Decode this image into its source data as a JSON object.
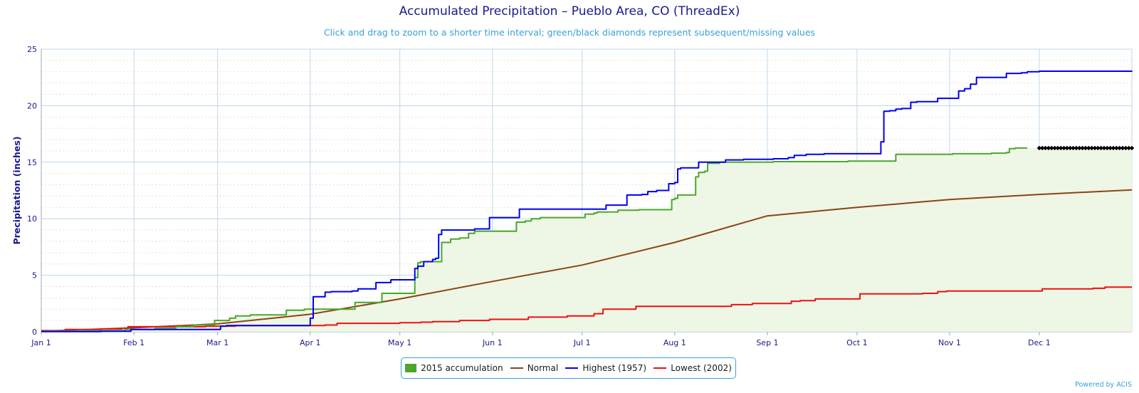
{
  "chart_data": {
    "type": "line",
    "title": "Accumulated Precipitation – Pueblo Area, CO (ThreadEx)",
    "subtitle": "Click and drag to zoom to a shorter time interval; green/black diamonds represent subsequent/missing values",
    "ylabel": "Precipitation (inches)",
    "xlabel": "",
    "ylim": [
      0,
      25
    ],
    "xlim": [
      0,
      365
    ],
    "yticks": [
      0,
      5,
      10,
      15,
      20,
      25
    ],
    "xticks": [
      {
        "day": 0,
        "label": "Jan 1"
      },
      {
        "day": 31,
        "label": "Feb 1"
      },
      {
        "day": 59,
        "label": "Mar 1"
      },
      {
        "day": 90,
        "label": "Apr 1"
      },
      {
        "day": 120,
        "label": "May 1"
      },
      {
        "day": 151,
        "label": "Jun 1"
      },
      {
        "day": 181,
        "label": "Jul 1"
      },
      {
        "day": 212,
        "label": "Aug 1"
      },
      {
        "day": 243,
        "label": "Sep 1"
      },
      {
        "day": 273,
        "label": "Oct 1"
      },
      {
        "day": 304,
        "label": "Nov 1"
      },
      {
        "day": 334,
        "label": "Dec 1"
      }
    ],
    "grid": true,
    "legend_position": "bottom-center",
    "series": [
      {
        "name": "2015 accumulation",
        "kind": "area",
        "color": "#4aa82a",
        "fill": "#eef6e6",
        "step": true,
        "points": [
          [
            0,
            0.05
          ],
          [
            12,
            0.1
          ],
          [
            28,
            0.2
          ],
          [
            38,
            0.3
          ],
          [
            45,
            0.45
          ],
          [
            51,
            0.6
          ],
          [
            57,
            0.6
          ],
          [
            58,
            1.0
          ],
          [
            61,
            1.0
          ],
          [
            63,
            1.2
          ],
          [
            65,
            1.4
          ],
          [
            70,
            1.5
          ],
          [
            76,
            1.5
          ],
          [
            81,
            1.5
          ],
          [
            82,
            1.9
          ],
          [
            87,
            1.9
          ],
          [
            88,
            2.0
          ],
          [
            98,
            2.0
          ],
          [
            104,
            2.0
          ],
          [
            105,
            2.6
          ],
          [
            110,
            2.6
          ],
          [
            113,
            2.6
          ],
          [
            114,
            3.4
          ],
          [
            120,
            3.4
          ],
          [
            122,
            3.4
          ],
          [
            125,
            4.8
          ],
          [
            126,
            6.1
          ],
          [
            127,
            6.2
          ],
          [
            133,
            6.2
          ],
          [
            134,
            7.9
          ],
          [
            137,
            8.2
          ],
          [
            140,
            8.3
          ],
          [
            143,
            8.7
          ],
          [
            145,
            8.9
          ],
          [
            155,
            8.9
          ],
          [
            158,
            8.9
          ],
          [
            159,
            9.7
          ],
          [
            162,
            9.8
          ],
          [
            164,
            10.0
          ],
          [
            167,
            10.1
          ],
          [
            180,
            10.1
          ],
          [
            182,
            10.4
          ],
          [
            185,
            10.5
          ],
          [
            186,
            10.6
          ],
          [
            192,
            10.6
          ],
          [
            193,
            10.75
          ],
          [
            199,
            10.75
          ],
          [
            200,
            10.8
          ],
          [
            210,
            10.8
          ],
          [
            211,
            11.7
          ],
          [
            212,
            11.8
          ],
          [
            213,
            12.1
          ],
          [
            218,
            12.1
          ],
          [
            219,
            13.7
          ],
          [
            220,
            14.1
          ],
          [
            222,
            14.2
          ],
          [
            223,
            14.9
          ],
          [
            227,
            15.0
          ],
          [
            245,
            15.05
          ],
          [
            255,
            15.05
          ],
          [
            270,
            15.1
          ],
          [
            285,
            15.1
          ],
          [
            286,
            15.7
          ],
          [
            290,
            15.7
          ],
          [
            305,
            15.75
          ],
          [
            318,
            15.8
          ],
          [
            323,
            15.85
          ],
          [
            324,
            16.2
          ],
          [
            326,
            16.25
          ],
          [
            330,
            16.25
          ]
        ]
      },
      {
        "name": "Normal",
        "kind": "line",
        "color": "#8b4513",
        "step": false,
        "points": [
          [
            0,
            0.05
          ],
          [
            31,
            0.35
          ],
          [
            59,
            0.7
          ],
          [
            90,
            1.55
          ],
          [
            120,
            2.9
          ],
          [
            151,
            4.45
          ],
          [
            181,
            5.9
          ],
          [
            212,
            7.9
          ],
          [
            243,
            10.25
          ],
          [
            273,
            11.0
          ],
          [
            304,
            11.7
          ],
          [
            334,
            12.15
          ],
          [
            365,
            12.55
          ]
        ]
      },
      {
        "name": "Highest (1957)",
        "kind": "line",
        "color": "#0000ee",
        "step": true,
        "points": [
          [
            0,
            0.02
          ],
          [
            20,
            0.05
          ],
          [
            30,
            0.2
          ],
          [
            59,
            0.2
          ],
          [
            60,
            0.5
          ],
          [
            62,
            0.55
          ],
          [
            89,
            0.55
          ],
          [
            90,
            1.2
          ],
          [
            91,
            3.1
          ],
          [
            93,
            3.1
          ],
          [
            95,
            3.5
          ],
          [
            97,
            3.55
          ],
          [
            104,
            3.6
          ],
          [
            106,
            3.8
          ],
          [
            111,
            3.8
          ],
          [
            112,
            4.35
          ],
          [
            116,
            4.35
          ],
          [
            117,
            4.6
          ],
          [
            124,
            4.6
          ],
          [
            125,
            5.6
          ],
          [
            126,
            5.8
          ],
          [
            128,
            6.2
          ],
          [
            131,
            6.4
          ],
          [
            132,
            6.5
          ],
          [
            133,
            8.6
          ],
          [
            134,
            9.0
          ],
          [
            141,
            9.0
          ],
          [
            145,
            9.1
          ],
          [
            149,
            9.1
          ],
          [
            150,
            10.1
          ],
          [
            159,
            10.1
          ],
          [
            160,
            10.85
          ],
          [
            188,
            10.85
          ],
          [
            189,
            11.2
          ],
          [
            195,
            11.2
          ],
          [
            196,
            12.1
          ],
          [
            201,
            12.15
          ],
          [
            203,
            12.4
          ],
          [
            206,
            12.5
          ],
          [
            209,
            12.5
          ],
          [
            210,
            13.1
          ],
          [
            212,
            13.2
          ],
          [
            213,
            14.4
          ],
          [
            214,
            14.5
          ],
          [
            219,
            14.5
          ],
          [
            220,
            15.0
          ],
          [
            228,
            15.0
          ],
          [
            229,
            15.2
          ],
          [
            235,
            15.25
          ],
          [
            245,
            15.3
          ],
          [
            250,
            15.4
          ],
          [
            252,
            15.6
          ],
          [
            256,
            15.7
          ],
          [
            262,
            15.75
          ],
          [
            280,
            15.75
          ],
          [
            281,
            16.8
          ],
          [
            282,
            19.5
          ],
          [
            284,
            19.55
          ],
          [
            286,
            19.7
          ],
          [
            288,
            19.75
          ],
          [
            291,
            20.3
          ],
          [
            293,
            20.35
          ],
          [
            299,
            20.35
          ],
          [
            300,
            20.65
          ],
          [
            306,
            20.65
          ],
          [
            307,
            21.3
          ],
          [
            309,
            21.5
          ],
          [
            311,
            21.9
          ],
          [
            313,
            22.5
          ],
          [
            322,
            22.5
          ],
          [
            323,
            22.85
          ],
          [
            328,
            22.9
          ],
          [
            330,
            23.0
          ],
          [
            334,
            23.05
          ],
          [
            365,
            23.08
          ]
        ]
      },
      {
        "name": "Lowest (2002)",
        "kind": "line",
        "color": "#ee1111",
        "step": true,
        "points": [
          [
            0,
            0.1
          ],
          [
            8,
            0.2
          ],
          [
            20,
            0.25
          ],
          [
            27,
            0.3
          ],
          [
            29,
            0.45
          ],
          [
            40,
            0.45
          ],
          [
            55,
            0.5
          ],
          [
            65,
            0.55
          ],
          [
            80,
            0.55
          ],
          [
            95,
            0.6
          ],
          [
            98,
            0.6
          ],
          [
            99,
            0.75
          ],
          [
            113,
            0.75
          ],
          [
            120,
            0.8
          ],
          [
            127,
            0.85
          ],
          [
            131,
            0.9
          ],
          [
            139,
            0.9
          ],
          [
            140,
            1.0
          ],
          [
            149,
            1.0
          ],
          [
            150,
            1.1
          ],
          [
            162,
            1.1
          ],
          [
            163,
            1.3
          ],
          [
            175,
            1.3
          ],
          [
            176,
            1.4
          ],
          [
            183,
            1.4
          ],
          [
            185,
            1.6
          ],
          [
            187,
            1.6
          ],
          [
            188,
            2.0
          ],
          [
            198,
            2.0
          ],
          [
            199,
            2.25
          ],
          [
            230,
            2.25
          ],
          [
            231,
            2.4
          ],
          [
            236,
            2.4
          ],
          [
            238,
            2.5
          ],
          [
            250,
            2.5
          ],
          [
            251,
            2.7
          ],
          [
            254,
            2.75
          ],
          [
            258,
            2.75
          ],
          [
            259,
            2.9
          ],
          [
            272,
            2.9
          ],
          [
            274,
            3.35
          ],
          [
            295,
            3.4
          ],
          [
            300,
            3.55
          ],
          [
            303,
            3.6
          ],
          [
            333,
            3.6
          ],
          [
            335,
            3.8
          ],
          [
            350,
            3.8
          ],
          [
            352,
            3.85
          ],
          [
            355,
            3.85
          ],
          [
            356,
            3.95
          ],
          [
            365,
            3.95
          ]
        ]
      }
    ],
    "missing_markers": {
      "color": "#000000",
      "value": 16.25,
      "day_range": [
        334,
        365
      ],
      "count": 31
    }
  },
  "legend": {
    "items": [
      {
        "label": "2015 accumulation",
        "color": "#4aa82a",
        "kind": "box"
      },
      {
        "label": "Normal",
        "color": "#8b4513",
        "kind": "line"
      },
      {
        "label": "Highest (1957)",
        "color": "#0000ee",
        "kind": "line"
      },
      {
        "label": "Lowest (2002)",
        "color": "#ee1111",
        "kind": "line"
      }
    ]
  },
  "credit": "Powered by ACIS"
}
